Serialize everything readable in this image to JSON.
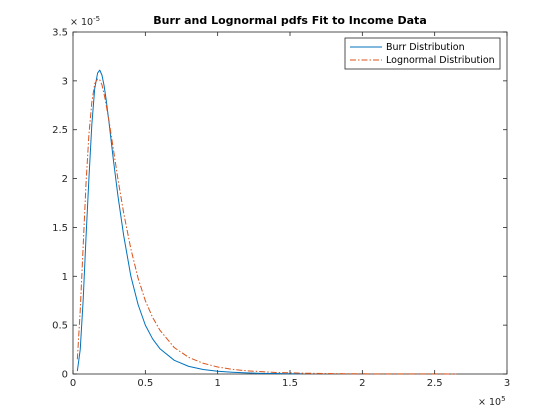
{
  "colors": {
    "axes": "#262626",
    "burr": "#0072BD",
    "lognormal": "#D95319",
    "background": "#ffffff"
  },
  "chart_data": {
    "type": "line",
    "title": "Burr and Lognormal pdfs Fit to Income Data",
    "xlabel": "",
    "ylabel": "",
    "xlim": [
      0,
      300000
    ],
    "ylim": [
      0,
      3.5e-05
    ],
    "x_ticks": [
      0,
      50000,
      100000,
      150000,
      200000,
      250000,
      300000
    ],
    "x_tick_labels": [
      "0",
      "0.5",
      "1",
      "1.5",
      "2",
      "2.5",
      "3"
    ],
    "x_exponent_base": "× 10",
    "x_exponent_power": "5",
    "y_ticks": [
      0,
      5e-06,
      1e-05,
      1.5e-05,
      2e-05,
      2.5e-05,
      3e-05,
      3.5e-05
    ],
    "y_tick_labels": [
      "0",
      "0.5",
      "1",
      "1.5",
      "2",
      "2.5",
      "3",
      "3.5"
    ],
    "y_exponent_base": "× 10",
    "y_exponent_power": "-5",
    "grid": false,
    "legend_position": "top-right",
    "series": [
      {
        "name": "Burr Distribution",
        "line_style": "solid",
        "x": [
          3000,
          5000,
          7000,
          9000,
          11000,
          13000,
          15000,
          17000,
          18500,
          20000,
          21500,
          23000,
          25000,
          28000,
          31000,
          35000,
          40000,
          45000,
          50000,
          55000,
          60000,
          70000,
          80000,
          90000,
          100000,
          110000,
          120000,
          130000,
          140000,
          150000,
          158000
        ],
        "y": [
          3e-07,
          2.5e-06,
          7.5e-06,
          1.4e-05,
          2e-05,
          2.55e-05,
          2.92e-05,
          3.08e-05,
          3.11e-05,
          3.06e-05,
          2.95e-05,
          2.8e-05,
          2.56e-05,
          2.18e-05,
          1.83e-05,
          1.42e-05,
          1e-05,
          7.1e-06,
          5e-06,
          3.6e-06,
          2.6e-06,
          1.4e-06,
          7.8e-07,
          4.6e-07,
          2.8e-07,
          1.8e-07,
          1.1e-07,
          7e-08,
          5e-08,
          3e-08,
          2e-08
        ]
      },
      {
        "name": "Lognormal Distribution",
        "line_style": "dashdot",
        "x": [
          3000,
          5000,
          7000,
          9000,
          11000,
          13000,
          15000,
          17000,
          18500,
          20000,
          22000,
          25000,
          28000,
          31000,
          35000,
          40000,
          45000,
          50000,
          55000,
          60000,
          70000,
          80000,
          90000,
          100000,
          110000,
          120000,
          140000,
          160000,
          180000,
          200000,
          230000,
          265000
        ],
        "y": [
          1.5e-06,
          6.5e-06,
          1.3e-05,
          1.95e-05,
          2.45e-05,
          2.78e-05,
          2.97e-05,
          3.02e-05,
          3.01e-05,
          2.96e-05,
          2.83e-05,
          2.58e-05,
          2.29e-05,
          2e-05,
          1.65e-05,
          1.28e-05,
          9.8e-06,
          7.5e-06,
          5.8e-06,
          4.5e-06,
          2.7e-06,
          1.7e-06,
          1.1e-06,
          7.2e-07,
          4.8e-07,
          3.3e-07,
          1.6e-07,
          8e-08,
          4e-08,
          2e-08,
          1e-08,
          5e-09
        ]
      }
    ]
  }
}
